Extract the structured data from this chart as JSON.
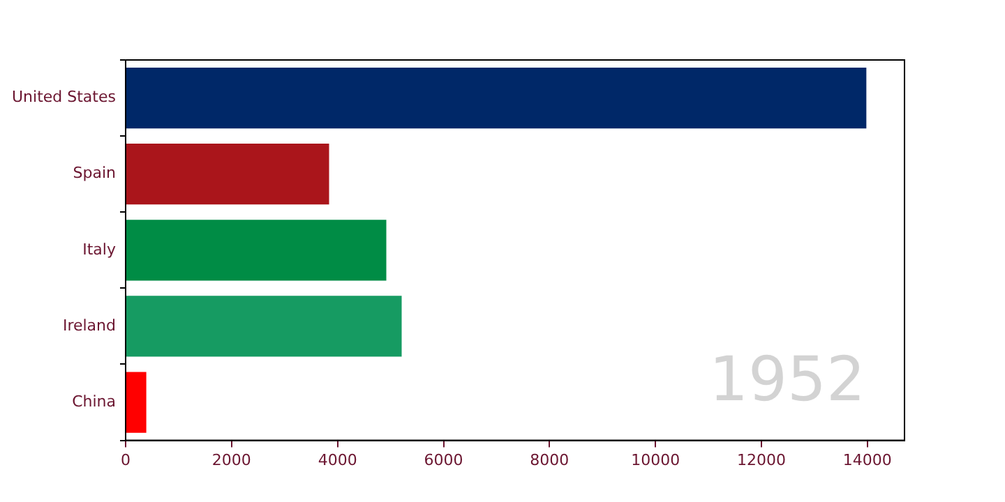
{
  "chart_data": {
    "type": "bar",
    "orientation": "horizontal",
    "categories": [
      "United States",
      "Spain",
      "Italy",
      "Ireland",
      "China"
    ],
    "values": [
      13980,
      3840,
      4920,
      5210,
      390
    ],
    "colors": [
      "#002868",
      "#aa151b",
      "#008c45",
      "#169b62",
      "#ff0000"
    ],
    "xlim": [
      0,
      14700
    ],
    "xticks": [
      0,
      2000,
      4000,
      6000,
      8000,
      10000,
      12000,
      14000
    ],
    "grid": false,
    "legend": false,
    "annotations": [
      "1952"
    ]
  }
}
